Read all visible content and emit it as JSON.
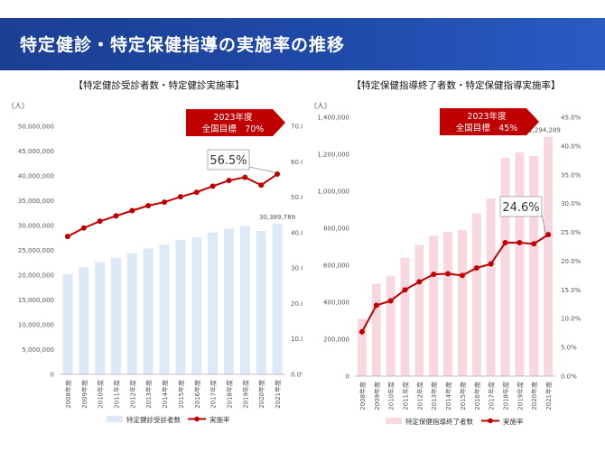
{
  "header": {
    "title": "特定健診・特定保健指導の実施率の推移"
  },
  "chart_data": [
    {
      "type": "bar",
      "title": "【特定健診受診者数・特定健診実施率】",
      "y_unit_label": "（人）",
      "categories": [
        "2008年度",
        "2009年度",
        "2010年度",
        "2011年度",
        "2012年度",
        "2013年度",
        "2014年度",
        "2015年度",
        "2016年度",
        "2017年度",
        "2018年度",
        "2019年度",
        "2020年度",
        "2021年度"
      ],
      "series": [
        {
          "name": "特定健診受診者数",
          "kind": "bar",
          "axis": "left",
          "values": [
            20200000,
            21600000,
            22600000,
            23500000,
            24400000,
            25400000,
            26200000,
            27100000,
            27600000,
            28600000,
            29400000,
            29900000,
            28900000,
            30389789
          ]
        },
        {
          "name": "実施率",
          "kind": "line",
          "axis": "right",
          "values": [
            38.9,
            41.3,
            43.2,
            44.7,
            46.2,
            47.6,
            48.6,
            50.1,
            51.4,
            53.1,
            54.7,
            55.6,
            53.4,
            56.5
          ]
        }
      ],
      "ylim_left": [
        0,
        50000000
      ],
      "yticks_left": [
        "0",
        "5,000,000",
        "10,000,000",
        "15,000,000",
        "20,000,000",
        "25,000,000",
        "30,000,000",
        "35,000,000",
        "40,000,000",
        "45,000,000",
        "50,000,000"
      ],
      "ylim_right": [
        0,
        70
      ],
      "yticks_right": [
        "0.0%",
        "10.0%",
        "20.0%",
        "30.0%",
        "40.0%",
        "50.0%",
        "60.0%",
        "70.0%"
      ],
      "last_bar_label": "30,389,789",
      "callout": "56.5%",
      "target": {
        "line1": "2023年度",
        "line2": "全国目標　70%"
      },
      "colors": {
        "bar": "#dde9f6",
        "line": "#c00000",
        "target_bg": "#c00000"
      }
    },
    {
      "type": "bar",
      "title": "【特定保健指導終了者数・特定保健指導実施率】",
      "y_unit_label": "（人）",
      "categories": [
        "2008年度",
        "2009年度",
        "2010年度",
        "2011年度",
        "2012年度",
        "2013年度",
        "2014年度",
        "2015年度",
        "2016年度",
        "2017年度",
        "2018年度",
        "2019年度",
        "2020年度",
        "2021年度"
      ],
      "series": [
        {
          "name": "特定保健指導終了者数",
          "kind": "bar",
          "axis": "left",
          "values": [
            310000,
            500000,
            540000,
            640000,
            710000,
            760000,
            780000,
            790000,
            880000,
            960000,
            1180000,
            1210000,
            1190000,
            1294289
          ]
        },
        {
          "name": "実施率",
          "kind": "line",
          "axis": "right",
          "values": [
            7.7,
            12.3,
            13.1,
            15.0,
            16.4,
            17.7,
            17.8,
            17.5,
            18.8,
            19.5,
            23.2,
            23.2,
            23.0,
            24.6
          ]
        }
      ],
      "ylim_left": [
        0,
        1400000
      ],
      "yticks_left": [
        "0",
        "200,000",
        "400,000",
        "600,000",
        "800,000",
        "1,000,000",
        "1,200,000",
        "1,400,000"
      ],
      "ylim_right": [
        0,
        45
      ],
      "yticks_right": [
        "0.0%",
        "5.0%",
        "10.0%",
        "15.0%",
        "20.0%",
        "25.0%",
        "30.0%",
        "35.0%",
        "40.0%",
        "45.0%"
      ],
      "last_bar_label": "1,294,289",
      "callout": "24.6%",
      "target": {
        "line1": "2023年度",
        "line2": "全国目標　45%"
      },
      "colors": {
        "bar": "#f8d7df",
        "line": "#c00000",
        "target_bg": "#c00000"
      }
    }
  ]
}
